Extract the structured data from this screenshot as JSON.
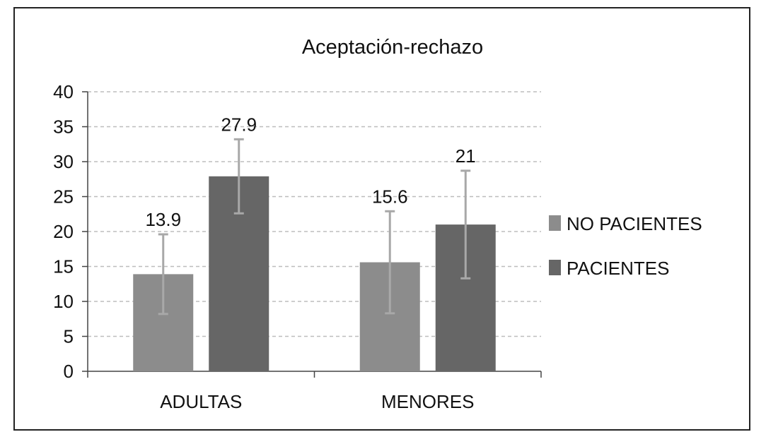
{
  "chart_data": {
    "type": "bar",
    "title": "Aceptación-rechazo",
    "categories": [
      "ADULTAS",
      "MENORES"
    ],
    "series": [
      {
        "name": "NO PACIENTES",
        "values": [
          13.9,
          15.6
        ],
        "error_low": [
          8.2,
          8.3
        ],
        "error_high": [
          19.6,
          22.9
        ],
        "color": "#8c8c8c"
      },
      {
        "name": "PACIENTES",
        "values": [
          27.9,
          21
        ],
        "error_low": [
          22.6,
          13.3
        ],
        "error_high": [
          33.2,
          28.7
        ],
        "color": "#666666"
      }
    ],
    "data_labels": [
      [
        "13.9",
        "15.6"
      ],
      [
        "27.9",
        "21"
      ]
    ],
    "y_ticks": [
      "0",
      "5",
      "10",
      "15",
      "20",
      "25",
      "30",
      "35",
      "40"
    ],
    "ylim": [
      0,
      40
    ],
    "grid": true,
    "legend_position": "right"
  }
}
